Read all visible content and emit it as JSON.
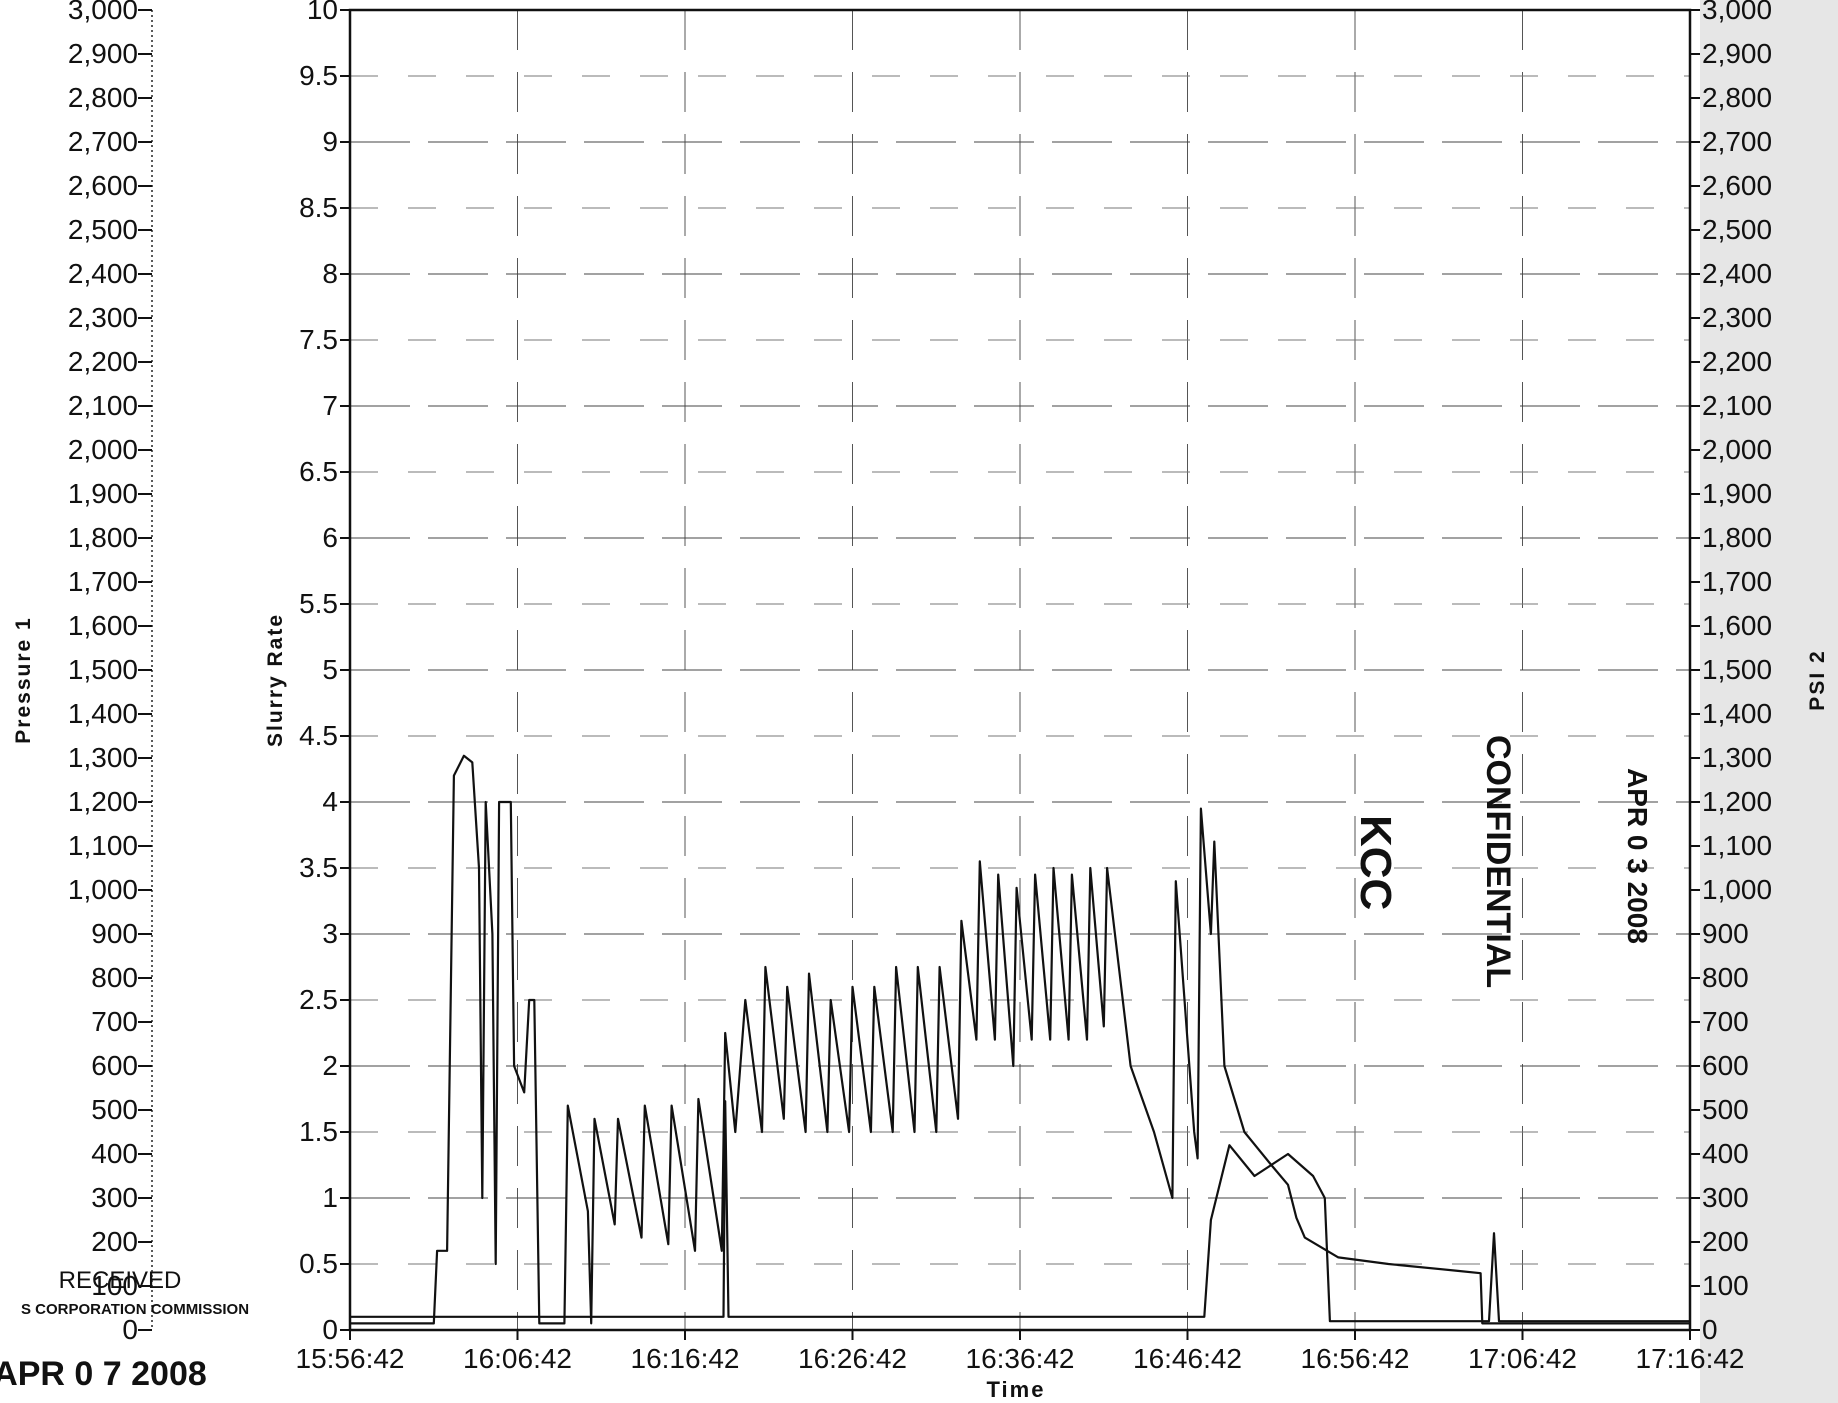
{
  "chart_data": {
    "type": "line",
    "title": "",
    "xlabel": "Time",
    "x_tick_labels": [
      "15:56:42",
      "16:06:42",
      "16:16:42",
      "16:26:42",
      "16:36:42",
      "16:46:42",
      "16:56:42",
      "17:06:42",
      "17:16:42"
    ],
    "x_range_minutes": [
      0,
      80
    ],
    "axes": {
      "left_outer": {
        "label": "Pressure 1",
        "min": 0,
        "max": 3000,
        "step": 100,
        "tick_labels": [
          "0",
          "100",
          "200",
          "300",
          "400",
          "500",
          "600",
          "700",
          "800",
          "900",
          "1,000",
          "1,100",
          "1,200",
          "1,300",
          "1,400",
          "1,500",
          "1,600",
          "1,700",
          "1,800",
          "1,900",
          "2,000",
          "2,100",
          "2,200",
          "2,300",
          "2,400",
          "2,500",
          "2,600",
          "2,700",
          "2,800",
          "2,900",
          "3,000"
        ]
      },
      "left_inner": {
        "label": "Slurry Rate",
        "min": 0,
        "max": 10,
        "step": 0.5,
        "tick_labels": [
          "0",
          "0.5",
          "1",
          "1.5",
          "2",
          "2.5",
          "3",
          "3.5",
          "4",
          "4.5",
          "5",
          "5.5",
          "6",
          "6.5",
          "7",
          "7.5",
          "8",
          "8.5",
          "9",
          "9.5",
          "10"
        ]
      },
      "right": {
        "label": "PSI 2",
        "min": 0,
        "max": 3000,
        "step": 100,
        "tick_labels": [
          "0",
          "100",
          "200",
          "300",
          "400",
          "500",
          "600",
          "700",
          "800",
          "900",
          "1,000",
          "1,100",
          "1,200",
          "1,300",
          "1,400",
          "1,500",
          "1,600",
          "1,700",
          "1,800",
          "1,900",
          "2,000",
          "2,100",
          "2,200",
          "2,300",
          "2,400",
          "2,500",
          "2,600",
          "2,700",
          "2,800",
          "2,900",
          "3,000"
        ]
      }
    },
    "grid": true,
    "legend": "none",
    "series": [
      {
        "axis": "left_inner",
        "points": [
          [
            0,
            0.05
          ],
          [
            5,
            0.05
          ],
          [
            5.2,
            0.6
          ],
          [
            5.8,
            0.6
          ],
          [
            6.2,
            4.2
          ],
          [
            6.8,
            4.35
          ],
          [
            7.3,
            4.3
          ],
          [
            7.7,
            3.5
          ],
          [
            7.9,
            1.0
          ],
          [
            8.1,
            4.0
          ],
          [
            8.5,
            3.0
          ],
          [
            8.7,
            0.5
          ],
          [
            8.9,
            4.0
          ],
          [
            9.6,
            4.0
          ],
          [
            9.8,
            2.0
          ],
          [
            10.4,
            1.8
          ],
          [
            10.7,
            2.5
          ],
          [
            11.0,
            2.5
          ],
          [
            11.3,
            0.05
          ],
          [
            12.8,
            0.05
          ],
          [
            13.0,
            1.7
          ],
          [
            14.2,
            0.9
          ],
          [
            14.4,
            0.05
          ],
          [
            14.6,
            1.6
          ],
          [
            15.8,
            0.8
          ],
          [
            16.0,
            1.6
          ],
          [
            17.4,
            0.7
          ],
          [
            17.6,
            1.7
          ],
          [
            19.0,
            0.65
          ],
          [
            19.2,
            1.7
          ],
          [
            20.6,
            0.6
          ],
          [
            20.8,
            1.75
          ],
          [
            22.2,
            0.6
          ],
          [
            22.4,
            2.25
          ],
          [
            23.0,
            1.5
          ],
          [
            23.6,
            2.5
          ],
          [
            24.6,
            1.5
          ],
          [
            24.8,
            2.75
          ],
          [
            25.9,
            1.6
          ],
          [
            26.1,
            2.6
          ],
          [
            27.2,
            1.5
          ],
          [
            27.4,
            2.7
          ],
          [
            28.5,
            1.5
          ],
          [
            28.7,
            2.5
          ],
          [
            29.8,
            1.5
          ],
          [
            30.0,
            2.6
          ],
          [
            31.1,
            1.5
          ],
          [
            31.3,
            2.6
          ],
          [
            32.4,
            1.5
          ],
          [
            32.6,
            2.75
          ],
          [
            33.7,
            1.5
          ],
          [
            33.9,
            2.75
          ],
          [
            35.0,
            1.5
          ],
          [
            35.2,
            2.75
          ],
          [
            36.3,
            1.6
          ],
          [
            36.5,
            3.1
          ],
          [
            37.4,
            2.2
          ],
          [
            37.6,
            3.55
          ],
          [
            38.5,
            2.2
          ],
          [
            38.7,
            3.45
          ],
          [
            39.6,
            2.0
          ],
          [
            39.8,
            3.35
          ],
          [
            40.7,
            2.2
          ],
          [
            40.9,
            3.45
          ],
          [
            41.8,
            2.2
          ],
          [
            42.0,
            3.5
          ],
          [
            42.9,
            2.2
          ],
          [
            43.1,
            3.45
          ],
          [
            44.0,
            2.2
          ],
          [
            44.2,
            3.5
          ],
          [
            45.0,
            2.3
          ],
          [
            45.2,
            3.5
          ],
          [
            46.6,
            2.0
          ],
          [
            48.0,
            1.5
          ],
          [
            49.1,
            1.0
          ],
          [
            49.3,
            3.4
          ],
          [
            50.4,
            1.5
          ],
          [
            50.6,
            1.3
          ],
          [
            50.8,
            3.95
          ],
          [
            51.4,
            3.0
          ],
          [
            51.6,
            3.7
          ],
          [
            52.2,
            2.0
          ],
          [
            53.4,
            1.5
          ],
          [
            55.0,
            1.25
          ],
          [
            56.0,
            1.1
          ],
          [
            56.5,
            0.85
          ],
          [
            57.0,
            0.7
          ],
          [
            59.0,
            0.55
          ],
          [
            62.0,
            0.5
          ],
          [
            66.0,
            0.45
          ],
          [
            67.5,
            0.43
          ],
          [
            67.6,
            0.05
          ],
          [
            80.0,
            0.05
          ]
        ],
        "notes": "approximate trace"
      },
      {
        "axis": "left_outer",
        "points": [
          [
            0,
            30
          ],
          [
            22.3,
            30
          ],
          [
            22.4,
            520
          ],
          [
            22.6,
            30
          ],
          [
            35,
            30
          ],
          [
            44,
            30
          ],
          [
            49,
            30
          ],
          [
            51,
            30
          ],
          [
            51.4,
            250
          ],
          [
            52.5,
            420
          ],
          [
            54,
            350
          ],
          [
            56,
            400
          ],
          [
            57.5,
            350
          ],
          [
            58.2,
            300
          ],
          [
            58.5,
            20
          ],
          [
            68,
            20
          ],
          [
            68.3,
            220
          ],
          [
            68.6,
            20
          ],
          [
            80,
            20
          ]
        ],
        "notes": "approximate trace"
      }
    ]
  },
  "stamps": {
    "confidential": "CONFIDENTIAL",
    "confidential_date": "APR 0 3 2008",
    "kcc": "KCC",
    "received": "RECEIVED",
    "commission": "S CORPORATION COMMISSION",
    "received_date": "APR 0 7 2008"
  }
}
